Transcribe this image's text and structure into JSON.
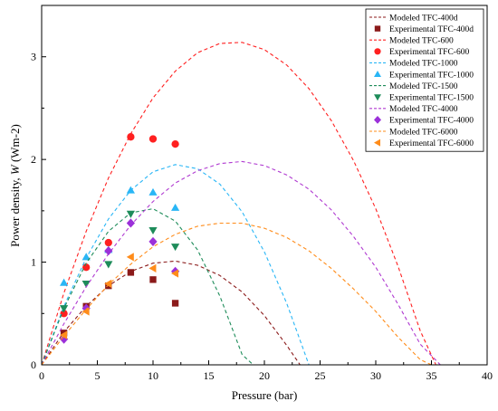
{
  "chart_data": {
    "type": "scatter",
    "xlabel": "Pressure (bar)",
    "ylabel_prefix": "Power density, ",
    "ylabel_var": "W",
    "ylabel_unit": " (Wm-2)",
    "xlim": [
      0,
      40
    ],
    "ylim": [
      0,
      3.5
    ],
    "xticks": [
      0,
      5,
      10,
      15,
      20,
      25,
      30,
      35,
      40
    ],
    "yticks": [
      0,
      1,
      2,
      3
    ],
    "x_tick_labels": [
      "0",
      "5",
      "10",
      "15",
      "20",
      "25",
      "30",
      "35",
      "40"
    ],
    "y_tick_labels": [
      "0",
      "1",
      "2",
      "3"
    ],
    "grid": false,
    "legend_position": "top-right",
    "series": [
      {
        "name": "Modeled TFC-400d",
        "kind": "model",
        "color": "#8b1a1a",
        "x": [
          0,
          2,
          4,
          6,
          8,
          10,
          12,
          14,
          16,
          18,
          20,
          22,
          23.2
        ],
        "y": [
          0,
          0.32,
          0.57,
          0.77,
          0.91,
          0.99,
          1.01,
          0.97,
          0.87,
          0.71,
          0.48,
          0.19,
          0
        ]
      },
      {
        "name": "Experimental TFC-400d",
        "kind": "experimental",
        "marker": "square",
        "color": "#8b1a1a",
        "x": [
          2,
          4,
          6,
          8,
          10,
          12
        ],
        "y": [
          0.31,
          0.57,
          0.77,
          0.9,
          0.83,
          0.6
        ]
      },
      {
        "name": "Modeled TFC-600",
        "kind": "model",
        "color": "#ff2020",
        "x": [
          0,
          2,
          4,
          6,
          8,
          10,
          12,
          14,
          16,
          18,
          20,
          22,
          24,
          26,
          28,
          30,
          32,
          34,
          35.4
        ],
        "y": [
          0,
          0.7,
          1.3,
          1.82,
          2.25,
          2.6,
          2.86,
          3.04,
          3.13,
          3.14,
          3.07,
          2.92,
          2.69,
          2.38,
          1.99,
          1.52,
          0.96,
          0.33,
          0
        ]
      },
      {
        "name": "Experimental TFC-600",
        "kind": "experimental",
        "marker": "circle",
        "color": "#ff2020",
        "x": [
          2,
          4,
          6,
          8,
          10,
          12
        ],
        "y": [
          0.5,
          0.95,
          1.19,
          2.22,
          2.2,
          2.15
        ]
      },
      {
        "name": "Modeled TFC-1000",
        "kind": "model",
        "color": "#29b6f6",
        "x": [
          0,
          2,
          4,
          6,
          8,
          10,
          12,
          14,
          16,
          18,
          20,
          22,
          24,
          25
        ],
        "y": [
          0,
          0.57,
          1.04,
          1.42,
          1.7,
          1.88,
          1.95,
          1.91,
          1.76,
          1.49,
          1.1,
          0.6,
          0.0,
          0
        ]
      },
      {
        "name": "Experimental TFC-1000",
        "kind": "experimental",
        "marker": "triangle-up",
        "color": "#29b6f6",
        "x": [
          2,
          4,
          6,
          8,
          10,
          12
        ],
        "y": [
          0.8,
          1.05,
          1.12,
          1.7,
          1.68,
          1.53
        ]
      },
      {
        "name": "Modeled TFC-1500",
        "kind": "model",
        "color": "#1e8c5a",
        "x": [
          0,
          2,
          4,
          6,
          8,
          10,
          12,
          14,
          16,
          18,
          19
        ],
        "y": [
          0,
          0.55,
          0.99,
          1.3,
          1.48,
          1.52,
          1.4,
          1.12,
          0.67,
          0.1,
          0
        ]
      },
      {
        "name": "Experimental TFC-1500",
        "kind": "experimental",
        "marker": "triangle-down",
        "color": "#1e8c5a",
        "x": [
          2,
          4,
          6,
          8,
          10,
          12
        ],
        "y": [
          0.55,
          0.79,
          0.98,
          1.47,
          1.31,
          1.15
        ]
      },
      {
        "name": "Modeled TFC-4000",
        "kind": "model",
        "color": "#b03ad1",
        "x": [
          0,
          2,
          4,
          6,
          8,
          10,
          12,
          14,
          16,
          18,
          20,
          22,
          24,
          26,
          28,
          30,
          32,
          34,
          35.8
        ],
        "y": [
          0,
          0.4,
          0.76,
          1.08,
          1.36,
          1.59,
          1.77,
          1.89,
          1.96,
          1.98,
          1.94,
          1.85,
          1.71,
          1.51,
          1.25,
          0.95,
          0.59,
          0.2,
          0
        ]
      },
      {
        "name": "Experimental TFC-4000",
        "kind": "experimental",
        "marker": "diamond",
        "color": "#9b30d9",
        "x": [
          2,
          4,
          6,
          8,
          10,
          12
        ],
        "y": [
          0.25,
          0.55,
          1.11,
          1.38,
          1.2,
          0.91
        ]
      },
      {
        "name": "Modeled TFC-6000",
        "kind": "model",
        "color": "#ff8c1a",
        "x": [
          0,
          2,
          4,
          6,
          8,
          10,
          12,
          14,
          16,
          18,
          20,
          22,
          24,
          26,
          28,
          30,
          32,
          34,
          35
        ],
        "y": [
          0,
          0.28,
          0.54,
          0.78,
          0.98,
          1.15,
          1.27,
          1.35,
          1.38,
          1.38,
          1.33,
          1.24,
          1.11,
          0.94,
          0.74,
          0.52,
          0.27,
          0.05,
          0
        ]
      },
      {
        "name": "Experimental TFC-6000",
        "kind": "experimental",
        "marker": "triangle-left",
        "color": "#ff8c1a",
        "x": [
          2,
          4,
          6,
          8,
          10,
          12
        ],
        "y": [
          0.29,
          0.52,
          0.79,
          1.05,
          0.94,
          0.89
        ]
      }
    ]
  }
}
